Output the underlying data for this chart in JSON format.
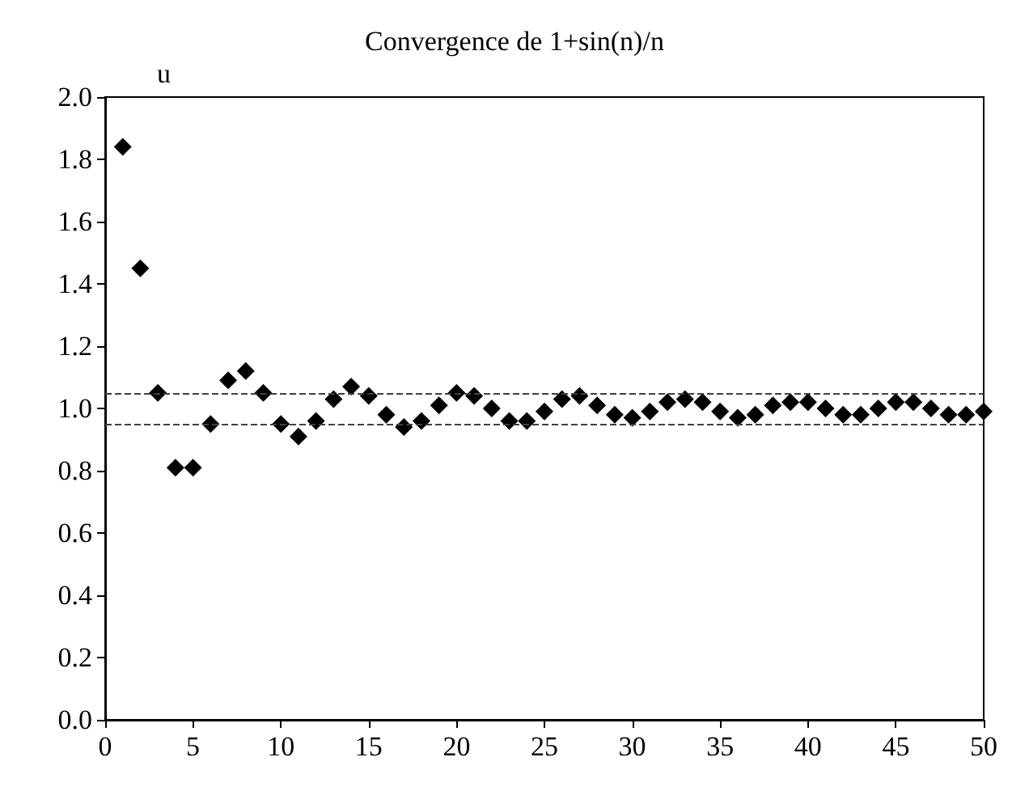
{
  "chart_data": {
    "type": "scatter",
    "title": "Convergence de 1+sin(n)/n",
    "ylabel": "u",
    "x": [
      1,
      2,
      3,
      4,
      5,
      6,
      7,
      8,
      9,
      10,
      11,
      12,
      13,
      14,
      15,
      16,
      17,
      18,
      19,
      20,
      21,
      22,
      23,
      24,
      25,
      26,
      27,
      28,
      29,
      30,
      31,
      32,
      33,
      34,
      35,
      36,
      37,
      38,
      39,
      40,
      41,
      42,
      43,
      44,
      45,
      46,
      47,
      48,
      49,
      50
    ],
    "series": [
      {
        "color": "#000000",
        "values": [
          1.84,
          1.45,
          1.05,
          0.81,
          0.81,
          0.95,
          1.09,
          1.12,
          1.05,
          0.95,
          0.91,
          0.96,
          1.03,
          1.07,
          1.04,
          0.98,
          0.94,
          0.96,
          1.01,
          1.05,
          1.04,
          1.0,
          0.96,
          0.96,
          0.99,
          1.03,
          1.04,
          1.01,
          0.98,
          0.97,
          0.99,
          1.02,
          1.03,
          1.02,
          0.99,
          0.97,
          0.98,
          1.01,
          1.02,
          1.02,
          1.0,
          0.98,
          0.98,
          1.0,
          1.02,
          1.02,
          1.0,
          0.98,
          0.98,
          0.99
        ]
      }
    ],
    "marker": "diamond",
    "xlim": [
      0,
      50
    ],
    "xticks": [
      0,
      5,
      10,
      15,
      20,
      25,
      30,
      35,
      40,
      45,
      50
    ],
    "ylim": [
      0,
      2
    ],
    "yticks": [
      {
        "value": 0,
        "label": "0.0"
      },
      0.2,
      0.4,
      0.6,
      0.8,
      {
        "value": 1,
        "label": "1.0"
      },
      1.2,
      1.4,
      1.6,
      1.8,
      {
        "value": 2,
        "label": "2.0"
      }
    ],
    "ref_lines": [
      {
        "axis": "y",
        "value": 1.05,
        "color": "#404040",
        "line_style": "dashed"
      },
      {
        "axis": "y",
        "value": 0.95,
        "color": "#404040",
        "line_style": "dashed"
      }
    ],
    "grid": false
  }
}
